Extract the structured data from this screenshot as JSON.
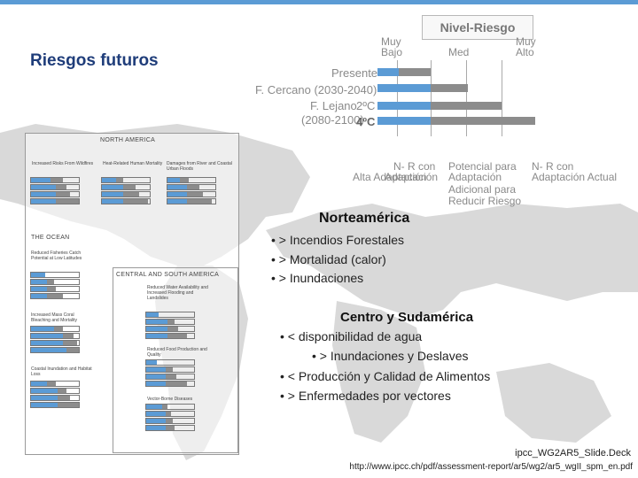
{
  "slide": {
    "title": "Riesgos futuros"
  },
  "legend": {
    "title": "Nivel-Riesgo",
    "muy_bajo": "Muy\nBajo",
    "muy_bajo_1": "Muy",
    "muy_bajo_2": "Bajo",
    "med": "Med",
    "muy_alto_1": "Muy",
    "muy_alto_2": "Alto",
    "presente": "Presente",
    "cercano": "F. Cercano (2030-2040)",
    "lejano_1": "F. Lejano",
    "lejano_2": "(2080-2100)",
    "two_c": "2ºC",
    "four_c": "4ºC",
    "alta_adapt": "Alta Adaptación",
    "nr_con_1": "N- R con",
    "nr_con_2": "Adaptación",
    "pot_1": "Potencial para",
    "pot_2": "Adaptación",
    "pot_3": "Adicional para",
    "pot_4": "Reducir Riesgo",
    "nr_con_b1": "N- R con",
    "nr_con_b2": "Adaptación Actual",
    "colors": {
      "blue": "#5b9bd5",
      "grey": "#8c8c8c"
    }
  },
  "inset": {
    "north_america": "NORTH AMERICA",
    "na_1": "Increased Risks From Wildfires",
    "na_2": "Heat-Related Human Mortality",
    "na_3": "Damages from River and Coastal Urban Floods",
    "ocean": "THE OCEAN",
    "oc_1": "Reduced Fisheries Catch Potential at Low Latitudes",
    "oc_2": "Increased Mass Coral Bleaching and Mortality",
    "oc_3": "Coastal Inundation and Habitat Loss",
    "csa": "CENTRAL AND SOUTH AMERICA",
    "csa_1": "Reduced Water Availability and Increased Flooding and Landslides",
    "csa_2": "Reduced Food Production and Quality",
    "csa_3": "Vector-Borne Diseases"
  },
  "norteamerica": {
    "heading": "Norteamérica",
    "b1": "• > Incendios Forestales",
    "b2": "• > Mortalidad (calor)",
    "b3": "• > Inundaciones"
  },
  "centro_sud": {
    "heading": "Centro y Sudamérica",
    "b1": "• <  disponibilidad de agua",
    "b2": "• > Inundaciones y Deslaves",
    "b3": "•  < Producción y Calidad de Alimentos",
    "b4": "• > Enfermedades por vectores"
  },
  "source": {
    "line1": "ipcc_WG2AR5_Slide.Deck",
    "line2": "http://www.ipcc.ch/pdf/assessment-report/ar5/wg2/ar5_wgII_spm_en.pdf"
  }
}
